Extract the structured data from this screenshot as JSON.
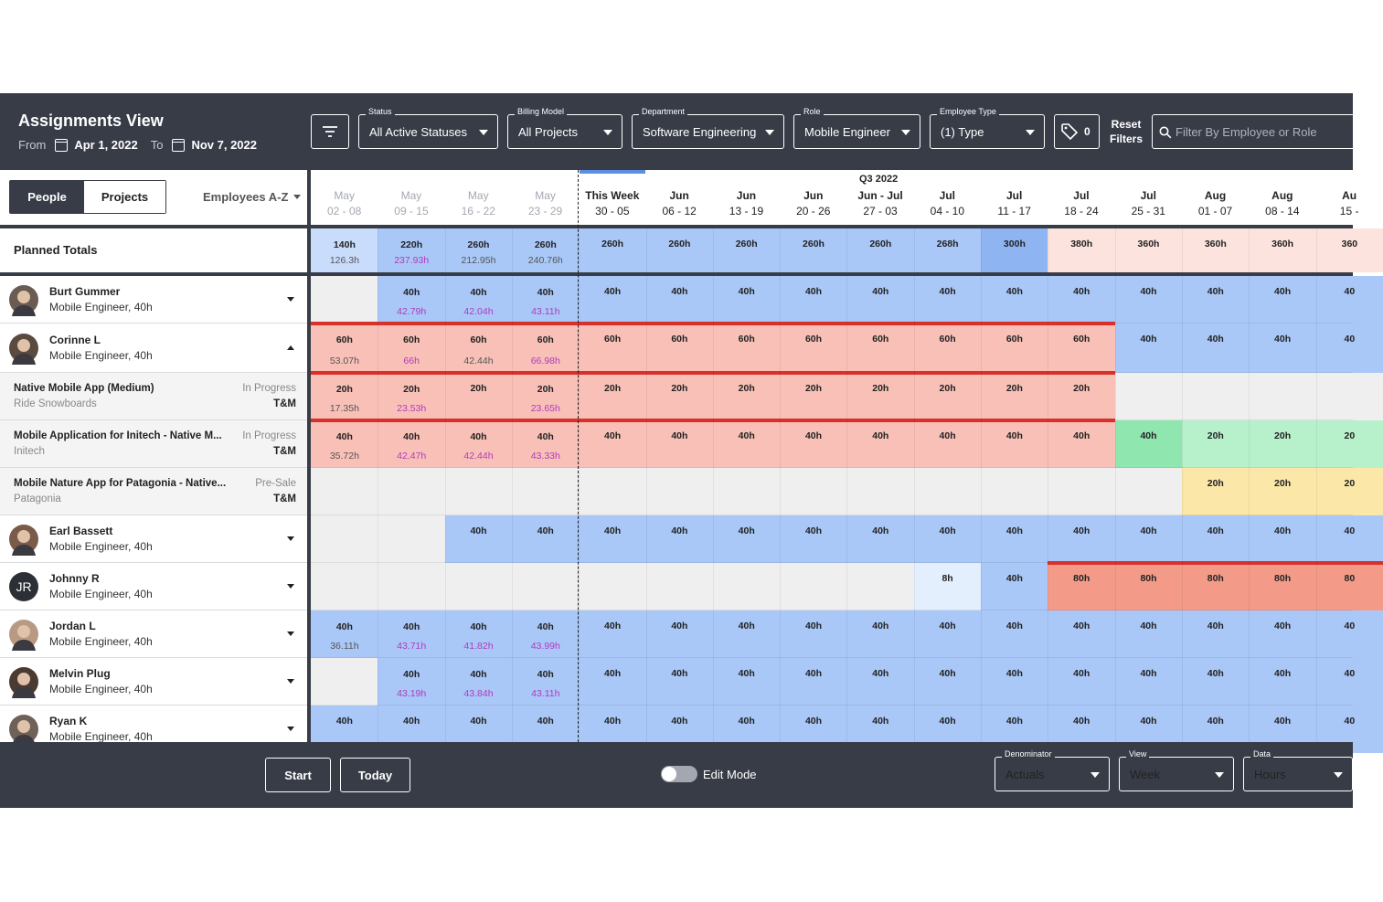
{
  "header": {
    "title": "Assignments View",
    "from_label": "From",
    "from_date": "Apr 1, 2022",
    "to_label": "To",
    "to_date": "Nov 7, 2022",
    "filters": [
      {
        "label": "Status",
        "value": "All Active Statuses"
      },
      {
        "label": "Billing Model",
        "value": "All Projects"
      },
      {
        "label": "Department",
        "value": "Software Engineering"
      },
      {
        "label": "Role",
        "value": "Mobile Engineer"
      },
      {
        "label": "Employee Type",
        "value": "(1) Type"
      }
    ],
    "tag_count": "0",
    "reset_label": "Reset Filters",
    "search_placeholder": "Filter By Employee or Role"
  },
  "view_tabs": [
    "People",
    "Projects"
  ],
  "sort_label": "Employees A-Z",
  "quarter_label": "Q3 2022",
  "weeks": [
    {
      "month": "May",
      "days": "02 - 08",
      "past": true
    },
    {
      "month": "May",
      "days": "09 - 15",
      "past": true
    },
    {
      "month": "May",
      "days": "16 - 22",
      "past": true
    },
    {
      "month": "May",
      "days": "23 - 29",
      "past": true
    },
    {
      "month": "This Week",
      "days": "30 - 05",
      "past": false
    },
    {
      "month": "Jun",
      "days": "06 - 12",
      "past": false
    },
    {
      "month": "Jun",
      "days": "13 - 19",
      "past": false
    },
    {
      "month": "Jun",
      "days": "20 - 26",
      "past": false
    },
    {
      "month": "Jun - Jul",
      "days": "27 - 03",
      "past": false
    },
    {
      "month": "Jul",
      "days": "04 - 10",
      "past": false
    },
    {
      "month": "Jul",
      "days": "11 - 17",
      "past": false
    },
    {
      "month": "Jul",
      "days": "18 - 24",
      "past": false
    },
    {
      "month": "Jul",
      "days": "25 - 31",
      "past": false
    },
    {
      "month": "Aug",
      "days": "01 - 07",
      "past": false
    },
    {
      "month": "Aug",
      "days": "08 - 14",
      "past": false
    },
    {
      "month": "Au",
      "days": "15 -",
      "past": false
    }
  ],
  "colors": {
    "blue": "#a9c7f7",
    "blue_dark": "#8eb4f2",
    "blue_light": "#c9dcfb",
    "red": "#f8c0b6",
    "red_dark": "#f39b88",
    "red_light": "#fce3de",
    "green": "#b7f1cc",
    "green_dark": "#8fe6ae",
    "yellow": "#fbe7a8",
    "grey": "#efefef",
    "paleblue": "#e4effd",
    "purple": "#b03cbf",
    "accent_bar": "#d9302c"
  },
  "totals": {
    "label": "Planned Totals",
    "cells": [
      {
        "t": "140h",
        "b": "126.3h",
        "c": "blue_light"
      },
      {
        "t": "220h",
        "b": "237.93h",
        "c": "blue",
        "p": true
      },
      {
        "t": "260h",
        "b": "212.95h",
        "c": "blue"
      },
      {
        "t": "260h",
        "b": "240.76h",
        "c": "blue"
      },
      {
        "t": "260h",
        "c": "blue"
      },
      {
        "t": "260h",
        "c": "blue"
      },
      {
        "t": "260h",
        "c": "blue"
      },
      {
        "t": "260h",
        "c": "blue"
      },
      {
        "t": "260h",
        "c": "blue"
      },
      {
        "t": "268h",
        "c": "blue"
      },
      {
        "t": "300h",
        "c": "blue_dark"
      },
      {
        "t": "380h",
        "c": "red_light"
      },
      {
        "t": "360h",
        "c": "red_light"
      },
      {
        "t": "360h",
        "c": "red_light"
      },
      {
        "t": "360h",
        "c": "red_light"
      },
      {
        "t": "360",
        "c": "red_light"
      }
    ]
  },
  "rows": [
    {
      "kind": "person",
      "name": "Burt Gummer",
      "role": "Mobile Engineer, 40h",
      "chev": "dn",
      "avatar": "#6a5c52",
      "h": 52,
      "cells": [
        {
          "c": "grey"
        },
        {
          "t": "40h",
          "b": "42.79h",
          "c": "blue",
          "p": true
        },
        {
          "t": "40h",
          "b": "42.04h",
          "c": "blue",
          "p": true
        },
        {
          "t": "40h",
          "b": "43.11h",
          "c": "blue",
          "p": true
        },
        {
          "t": "40h",
          "c": "blue"
        },
        {
          "t": "40h",
          "c": "blue"
        },
        {
          "t": "40h",
          "c": "blue"
        },
        {
          "t": "40h",
          "c": "blue"
        },
        {
          "t": "40h",
          "c": "blue"
        },
        {
          "t": "40h",
          "c": "blue"
        },
        {
          "t": "40h",
          "c": "blue"
        },
        {
          "t": "40h",
          "c": "blue"
        },
        {
          "t": "40h",
          "c": "blue"
        },
        {
          "t": "40h",
          "c": "blue"
        },
        {
          "t": "40h",
          "c": "blue"
        },
        {
          "t": "40",
          "c": "blue"
        }
      ]
    },
    {
      "kind": "person",
      "name": "Corinne L",
      "role": "Mobile Engineer, 40h",
      "chev": "up",
      "avatar": "#5a4a40",
      "h": 54,
      "bar": [
        0,
        12
      ],
      "cells": [
        {
          "t": "60h",
          "b": "53.07h",
          "c": "red"
        },
        {
          "t": "60h",
          "b": "66h",
          "c": "red",
          "p": true
        },
        {
          "t": "60h",
          "b": "42.44h",
          "c": "red"
        },
        {
          "t": "60h",
          "b": "66.98h",
          "c": "red",
          "p": true
        },
        {
          "t": "60h",
          "c": "red"
        },
        {
          "t": "60h",
          "c": "red"
        },
        {
          "t": "60h",
          "c": "red"
        },
        {
          "t": "60h",
          "c": "red"
        },
        {
          "t": "60h",
          "c": "red"
        },
        {
          "t": "60h",
          "c": "red"
        },
        {
          "t": "60h",
          "c": "red"
        },
        {
          "t": "60h",
          "c": "red"
        },
        {
          "t": "40h",
          "c": "blue"
        },
        {
          "t": "40h",
          "c": "blue"
        },
        {
          "t": "40h",
          "c": "blue"
        },
        {
          "t": "40",
          "c": "blue"
        }
      ]
    },
    {
      "kind": "project",
      "name": "Native Mobile App (Medium)",
      "client": "Ride Snowboards",
      "status": "In Progress",
      "billing": "T&M",
      "h": 52,
      "bar": [
        0,
        12
      ],
      "cells": [
        {
          "t": "20h",
          "b": "17.35h",
          "c": "red"
        },
        {
          "t": "20h",
          "b": "23.53h",
          "c": "red",
          "p": true
        },
        {
          "t": "20h",
          "c": "red"
        },
        {
          "t": "20h",
          "b": "23.65h",
          "c": "red",
          "p": true
        },
        {
          "t": "20h",
          "c": "red"
        },
        {
          "t": "20h",
          "c": "red"
        },
        {
          "t": "20h",
          "c": "red"
        },
        {
          "t": "20h",
          "c": "red"
        },
        {
          "t": "20h",
          "c": "red"
        },
        {
          "t": "20h",
          "c": "red"
        },
        {
          "t": "20h",
          "c": "red"
        },
        {
          "t": "20h",
          "c": "red"
        },
        {
          "c": "grey"
        },
        {
          "c": "grey"
        },
        {
          "c": "grey"
        },
        {
          "c": "grey"
        }
      ]
    },
    {
      "kind": "project",
      "name": "Mobile Application for Initech - Native M...",
      "client": "Initech",
      "status": "In Progress",
      "billing": "T&M",
      "h": 52,
      "bar": [
        0,
        12
      ],
      "cells": [
        {
          "t": "40h",
          "b": "35.72h",
          "c": "red"
        },
        {
          "t": "40h",
          "b": "42.47h",
          "c": "red",
          "p": true
        },
        {
          "t": "40h",
          "b": "42.44h",
          "c": "red",
          "p": true
        },
        {
          "t": "40h",
          "b": "43.33h",
          "c": "red",
          "p": true
        },
        {
          "t": "40h",
          "c": "red"
        },
        {
          "t": "40h",
          "c": "red"
        },
        {
          "t": "40h",
          "c": "red"
        },
        {
          "t": "40h",
          "c": "red"
        },
        {
          "t": "40h",
          "c": "red"
        },
        {
          "t": "40h",
          "c": "red"
        },
        {
          "t": "40h",
          "c": "red"
        },
        {
          "t": "40h",
          "c": "red"
        },
        {
          "t": "40h",
          "c": "green_dark"
        },
        {
          "t": "20h",
          "c": "green"
        },
        {
          "t": "20h",
          "c": "green"
        },
        {
          "t": "20",
          "c": "green"
        }
      ]
    },
    {
      "kind": "project",
      "name": "Mobile Nature App for Patagonia - Native...",
      "client": "Patagonia",
      "status": "Pre-Sale",
      "billing": "T&M",
      "h": 52,
      "cells": [
        {
          "c": "grey"
        },
        {
          "c": "grey"
        },
        {
          "c": "grey"
        },
        {
          "c": "grey"
        },
        {
          "c": "grey"
        },
        {
          "c": "grey"
        },
        {
          "c": "grey"
        },
        {
          "c": "grey"
        },
        {
          "c": "grey"
        },
        {
          "c": "grey"
        },
        {
          "c": "grey"
        },
        {
          "c": "grey"
        },
        {
          "c": "grey"
        },
        {
          "t": "20h",
          "c": "yellow"
        },
        {
          "t": "20h",
          "c": "yellow"
        },
        {
          "t": "20",
          "c": "yellow"
        }
      ]
    },
    {
      "kind": "person",
      "name": "Earl Bassett",
      "role": "Mobile Engineer, 40h",
      "chev": "dn",
      "avatar": "#7a5a48",
      "h": 52,
      "cells": [
        {
          "c": "grey"
        },
        {
          "c": "grey"
        },
        {
          "t": "40h",
          "c": "blue"
        },
        {
          "t": "40h",
          "c": "blue"
        },
        {
          "t": "40h",
          "c": "blue"
        },
        {
          "t": "40h",
          "c": "blue"
        },
        {
          "t": "40h",
          "c": "blue"
        },
        {
          "t": "40h",
          "c": "blue"
        },
        {
          "t": "40h",
          "c": "blue"
        },
        {
          "t": "40h",
          "c": "blue"
        },
        {
          "t": "40h",
          "c": "blue"
        },
        {
          "t": "40h",
          "c": "blue"
        },
        {
          "t": "40h",
          "c": "blue"
        },
        {
          "t": "40h",
          "c": "blue"
        },
        {
          "t": "40h",
          "c": "blue"
        },
        {
          "t": "40",
          "c": "blue"
        }
      ]
    },
    {
      "kind": "person",
      "name": "Johnny R",
      "role": "Mobile Engineer, 40h",
      "chev": "dn",
      "initials": "JR",
      "avatar": "#2c2f36",
      "h": 52,
      "bar": [
        11,
        16
      ],
      "cells": [
        {
          "c": "grey"
        },
        {
          "c": "grey"
        },
        {
          "c": "grey"
        },
        {
          "c": "grey"
        },
        {
          "c": "grey"
        },
        {
          "c": "grey"
        },
        {
          "c": "grey"
        },
        {
          "c": "grey"
        },
        {
          "c": "grey"
        },
        {
          "t": "8h",
          "c": "paleblue"
        },
        {
          "t": "40h",
          "c": "blue"
        },
        {
          "t": "80h",
          "c": "red_dark"
        },
        {
          "t": "80h",
          "c": "red_dark"
        },
        {
          "t": "80h",
          "c": "red_dark"
        },
        {
          "t": "80h",
          "c": "red_dark"
        },
        {
          "t": "80",
          "c": "red_dark"
        }
      ]
    },
    {
      "kind": "person",
      "name": "Jordan L",
      "role": "Mobile Engineer, 40h",
      "chev": "dn",
      "avatar": "#b89a84",
      "h": 52,
      "cells": [
        {
          "t": "40h",
          "b": "36.11h",
          "c": "blue"
        },
        {
          "t": "40h",
          "b": "43.71h",
          "c": "blue",
          "p": true
        },
        {
          "t": "40h",
          "b": "41.82h",
          "c": "blue",
          "p": true
        },
        {
          "t": "40h",
          "b": "43.99h",
          "c": "blue",
          "p": true
        },
        {
          "t": "40h",
          "c": "blue"
        },
        {
          "t": "40h",
          "c": "blue"
        },
        {
          "t": "40h",
          "c": "blue"
        },
        {
          "t": "40h",
          "c": "blue"
        },
        {
          "t": "40h",
          "c": "blue"
        },
        {
          "t": "40h",
          "c": "blue"
        },
        {
          "t": "40h",
          "c": "blue"
        },
        {
          "t": "40h",
          "c": "blue"
        },
        {
          "t": "40h",
          "c": "blue"
        },
        {
          "t": "40h",
          "c": "blue"
        },
        {
          "t": "40h",
          "c": "blue"
        },
        {
          "t": "40",
          "c": "blue"
        }
      ]
    },
    {
      "kind": "person",
      "name": "Melvin Plug",
      "role": "Mobile Engineer, 40h",
      "chev": "dn",
      "avatar": "#4b3a32",
      "h": 52,
      "cells": [
        {
          "c": "grey"
        },
        {
          "t": "40h",
          "b": "43.19h",
          "c": "blue",
          "p": true
        },
        {
          "t": "40h",
          "b": "43.84h",
          "c": "blue",
          "p": true
        },
        {
          "t": "40h",
          "b": "43.11h",
          "c": "blue",
          "p": true
        },
        {
          "t": "40h",
          "c": "blue"
        },
        {
          "t": "40h",
          "c": "blue"
        },
        {
          "t": "40h",
          "c": "blue"
        },
        {
          "t": "40h",
          "c": "blue"
        },
        {
          "t": "40h",
          "c": "blue"
        },
        {
          "t": "40h",
          "c": "blue"
        },
        {
          "t": "40h",
          "c": "blue"
        },
        {
          "t": "40h",
          "c": "blue"
        },
        {
          "t": "40h",
          "c": "blue"
        },
        {
          "t": "40h",
          "c": "blue"
        },
        {
          "t": "40h",
          "c": "blue"
        },
        {
          "t": "40",
          "c": "blue"
        }
      ]
    },
    {
      "kind": "person",
      "name": "Ryan K",
      "role": "Mobile Engineer, 40h",
      "chev": "dn",
      "avatar": "#6e6258",
      "h": 52,
      "cells": [
        {
          "t": "40h",
          "c": "blue"
        },
        {
          "t": "40h",
          "c": "blue"
        },
        {
          "t": "40h",
          "c": "blue"
        },
        {
          "t": "40h",
          "c": "blue"
        },
        {
          "t": "40h",
          "c": "blue"
        },
        {
          "t": "40h",
          "c": "blue"
        },
        {
          "t": "40h",
          "c": "blue"
        },
        {
          "t": "40h",
          "c": "blue"
        },
        {
          "t": "40h",
          "c": "blue"
        },
        {
          "t": "40h",
          "c": "blue"
        },
        {
          "t": "40h",
          "c": "blue"
        },
        {
          "t": "40h",
          "c": "blue"
        },
        {
          "t": "40h",
          "c": "blue"
        },
        {
          "t": "40h",
          "c": "blue"
        },
        {
          "t": "40h",
          "c": "blue"
        },
        {
          "t": "40",
          "c": "blue"
        }
      ]
    }
  ],
  "footer": {
    "start_label": "Start",
    "today_label": "Today",
    "edit_mode_label": "Edit Mode",
    "edit_mode_on": false,
    "dropdowns": [
      {
        "label": "Denominator",
        "value": "Actuals"
      },
      {
        "label": "View",
        "value": "Week"
      },
      {
        "label": "Data",
        "value": "Hours"
      }
    ]
  }
}
